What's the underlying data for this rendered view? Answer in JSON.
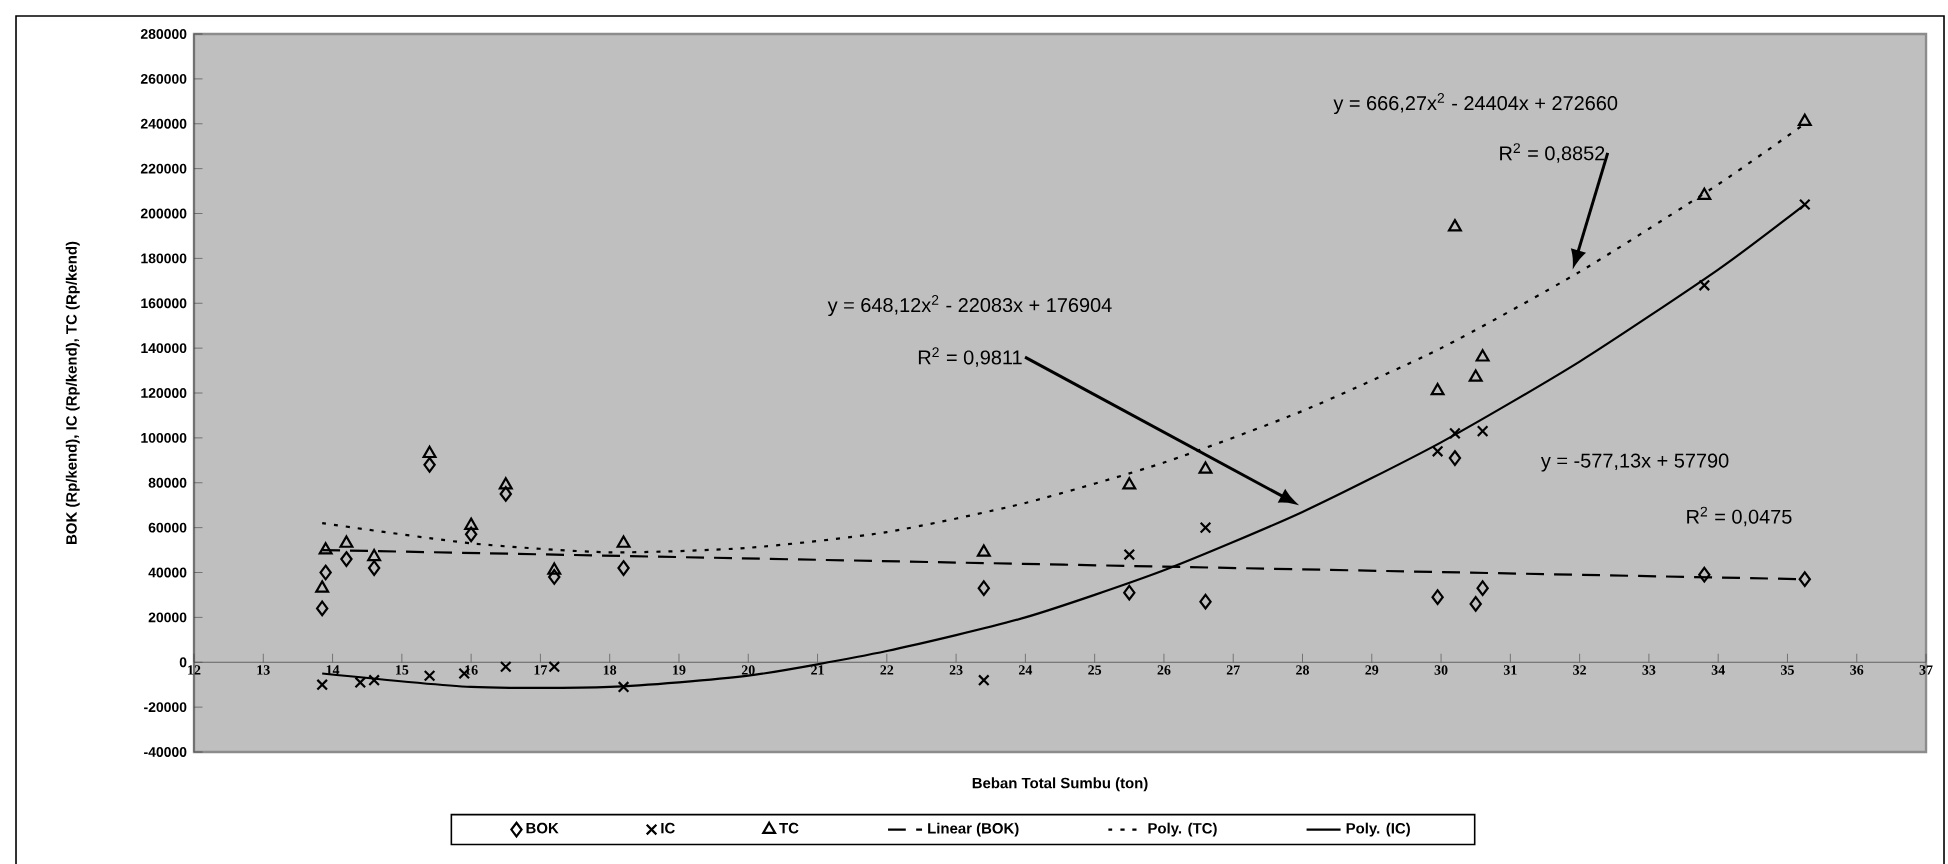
{
  "chart_data": {
    "type": "scatter",
    "xlabel": "Beban Total Sumbu (ton)",
    "ylabel": "BOK (Rp/kend), IC (Rp/kend), TC (Rp/kend)",
    "xlim": [
      12,
      37
    ],
    "xticks": [
      12,
      13,
      14,
      15,
      16,
      17,
      18,
      19,
      20,
      21,
      22,
      23,
      24,
      25,
      26,
      27,
      28,
      29,
      30,
      31,
      32,
      33,
      34,
      35,
      36,
      37
    ],
    "ylim": [
      -40000,
      280000
    ],
    "yticks": [
      -40000,
      -20000,
      0,
      20000,
      40000,
      60000,
      80000,
      100000,
      120000,
      140000,
      160000,
      180000,
      200000,
      220000,
      240000,
      260000,
      280000
    ],
    "legend": "bottom",
    "series": [
      {
        "name": "BOK",
        "marker": "diamond",
        "color": "#000000",
        "x": [
          13.85,
          13.9,
          14.2,
          14.6,
          15.4,
          16.0,
          16.5,
          17.2,
          18.2,
          23.4,
          25.5,
          26.6,
          29.95,
          30.2,
          30.5,
          30.6,
          33.8,
          35.25
        ],
        "values": [
          24000,
          40000,
          46000,
          42000,
          88000,
          57000,
          75000,
          38000,
          42000,
          33000,
          31000,
          27000,
          29000,
          91000,
          26000,
          33000,
          39000,
          37000
        ]
      },
      {
        "name": "IC",
        "marker": "cross",
        "color": "#000000",
        "x": [
          13.85,
          14.4,
          14.6,
          15.4,
          15.9,
          16.5,
          17.2,
          18.2,
          23.4,
          25.5,
          26.6,
          29.95,
          30.2,
          30.6,
          33.8,
          35.25
        ],
        "values": [
          -10000,
          -9000,
          -8000,
          -6000,
          -5000,
          -2000,
          -2000,
          -11000,
          -8000,
          48000,
          60000,
          94000,
          102000,
          103000,
          168000,
          204000
        ]
      },
      {
        "name": "TC",
        "marker": "triangle",
        "color": "#000000",
        "x": [
          13.85,
          13.9,
          14.2,
          14.6,
          15.4,
          16.0,
          16.5,
          17.2,
          18.2,
          23.4,
          25.5,
          26.6,
          29.95,
          30.2,
          30.5,
          30.6,
          33.8,
          35.25
        ],
        "values": [
          33000,
          50000,
          53000,
          47000,
          93000,
          61000,
          79000,
          41000,
          53000,
          49000,
          79000,
          86000,
          121000,
          194000,
          127000,
          136000,
          208000,
          241000
        ]
      },
      {
        "name": "Linear (BOK)",
        "type": "line",
        "line_style": "dashed",
        "color": "#000000",
        "x": [
          13.85,
          35.25
        ],
        "values": [
          50000,
          37000
        ]
      },
      {
        "name": "Poly. (TC)",
        "type": "line",
        "line_style": "dotted",
        "color": "#000000",
        "x": [
          13.85,
          16,
          18,
          20,
          22,
          24,
          26,
          28,
          30,
          32,
          34,
          35.25
        ],
        "values": [
          62000,
          53000,
          49000,
          51000,
          58000,
          71000,
          89000,
          112000,
          140000,
          174000,
          213000,
          240000
        ]
      },
      {
        "name": "Poly. (IC)",
        "type": "line",
        "line_style": "solid",
        "color": "#000000",
        "x": [
          13.85,
          16,
          18,
          20,
          22,
          24,
          26,
          28,
          30,
          32,
          34,
          35.25
        ],
        "values": [
          -5000,
          -11000,
          -11000,
          -6000,
          5000,
          20000,
          41000,
          67000,
          98000,
          134000,
          175000,
          204000
        ]
      }
    ],
    "annotations": [
      "y = 666,27x$^{2}$ - 24404x + 272660",
      "R$^{2}$ = 0,8852",
      "y = 648,12x$^{2}$ - 22083x + 176904",
      "R$^{2}$ = 0,9811",
      "y = -577,13x + 57790",
      "R$^{2}$ = 0,0475"
    ]
  }
}
